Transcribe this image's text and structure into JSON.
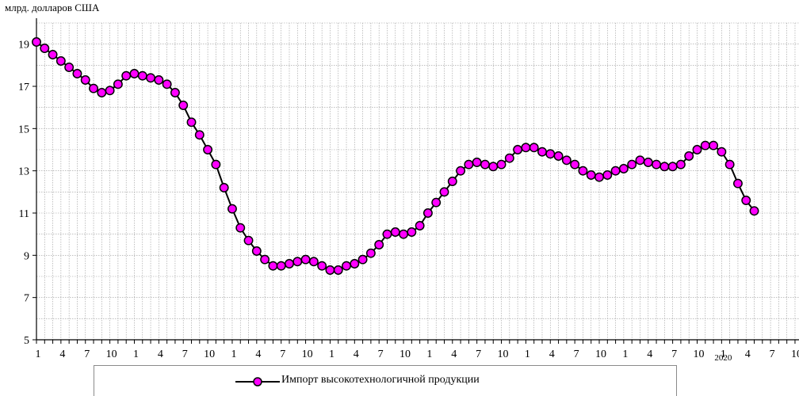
{
  "chart_data": {
    "type": "line",
    "ylabel": "млрд. долларов США",
    "ylim": [
      5,
      20
    ],
    "yticks": [
      5,
      7,
      9,
      11,
      13,
      15,
      17,
      19
    ],
    "grid": true,
    "legend_position": "bottom",
    "x_tick_labels": [
      "1",
      "4",
      "7",
      "10",
      "1",
      "4",
      "7",
      "10",
      "1",
      "4",
      "7",
      "10",
      "1",
      "4",
      "7",
      "10",
      "1",
      "4",
      "7",
      "10",
      "1",
      "4",
      "7",
      "10",
      "1",
      "4",
      "7",
      "10",
      "1",
      "4",
      "7",
      "10"
    ],
    "year_labels": [
      "2020"
    ],
    "series": [
      {
        "name": "Импорт высокотехнологичной продукции",
        "color": "#ff00ff",
        "values": [
          19.1,
          18.8,
          18.5,
          18.2,
          17.9,
          17.6,
          17.3,
          16.9,
          16.7,
          16.8,
          17.1,
          17.5,
          17.6,
          17.5,
          17.4,
          17.3,
          17.1,
          16.7,
          16.1,
          15.3,
          14.7,
          14.0,
          13.3,
          12.2,
          11.2,
          10.3,
          9.7,
          9.2,
          8.8,
          8.5,
          8.5,
          8.6,
          8.7,
          8.8,
          8.7,
          8.5,
          8.3,
          8.3,
          8.5,
          8.6,
          8.8,
          9.1,
          9.5,
          10.0,
          10.1,
          10.0,
          10.1,
          10.4,
          11.0,
          11.5,
          12.0,
          12.5,
          13.0,
          13.3,
          13.4,
          13.3,
          13.2,
          13.3,
          13.6,
          14.0,
          14.1,
          14.1,
          13.9,
          13.8,
          13.7,
          13.5,
          13.3,
          13.0,
          12.8,
          12.7,
          12.8,
          13.0,
          13.1,
          13.3,
          13.5,
          13.4,
          13.3,
          13.2,
          13.2,
          13.3,
          13.7,
          14.0,
          14.2,
          14.2,
          13.9,
          13.3,
          12.4,
          11.6,
          11.1
        ]
      }
    ]
  }
}
